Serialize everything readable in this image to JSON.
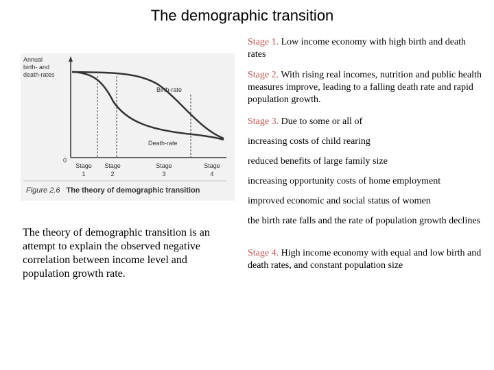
{
  "title": "The demographic transition",
  "figure": {
    "y_axis_label": [
      "Annual",
      "birth- and",
      "death-rates"
    ],
    "origin_label": "0",
    "birth_rate_label": "Birth-rate",
    "death_rate_label": "Death-rate",
    "stages": [
      {
        "word": "Stage",
        "number": "1"
      },
      {
        "word": "Stage",
        "number": "2"
      },
      {
        "word": "Stage",
        "number": "3"
      },
      {
        "word": "Stage",
        "number": "4"
      }
    ],
    "caption_number": "Figure 2.6",
    "caption_text": "The theory of demographic transition"
  },
  "summary": "The theory of demographic transition is an attempt to explain the observed negative correlation between income level and population growth rate.",
  "paragraphs": [
    {
      "label": "Stage 1.",
      "text": " Low income economy with high birth and death rates"
    },
    {
      "label": "Stage 2.",
      "text": " With rising real incomes, nutrition and public health measures improve, leading to a falling death rate and rapid population growth."
    },
    {
      "label": "Stage 3.",
      "text": " Due to some or all of"
    },
    {
      "label": "",
      "text": "increasing costs of child rearing"
    },
    {
      "label": "",
      "text": "reduced benefits of large family size"
    },
    {
      "label": "",
      "text": "increasing opportunity costs of home employment"
    },
    {
      "label": "",
      "text": "improved economic and social status of women"
    },
    {
      "label": "",
      "text": "the birth rate falls and the rate of population growth declines"
    },
    {
      "label": "Stage 4.",
      "text": " High income economy with equal and low birth and death rates, and constant population size"
    }
  ]
}
